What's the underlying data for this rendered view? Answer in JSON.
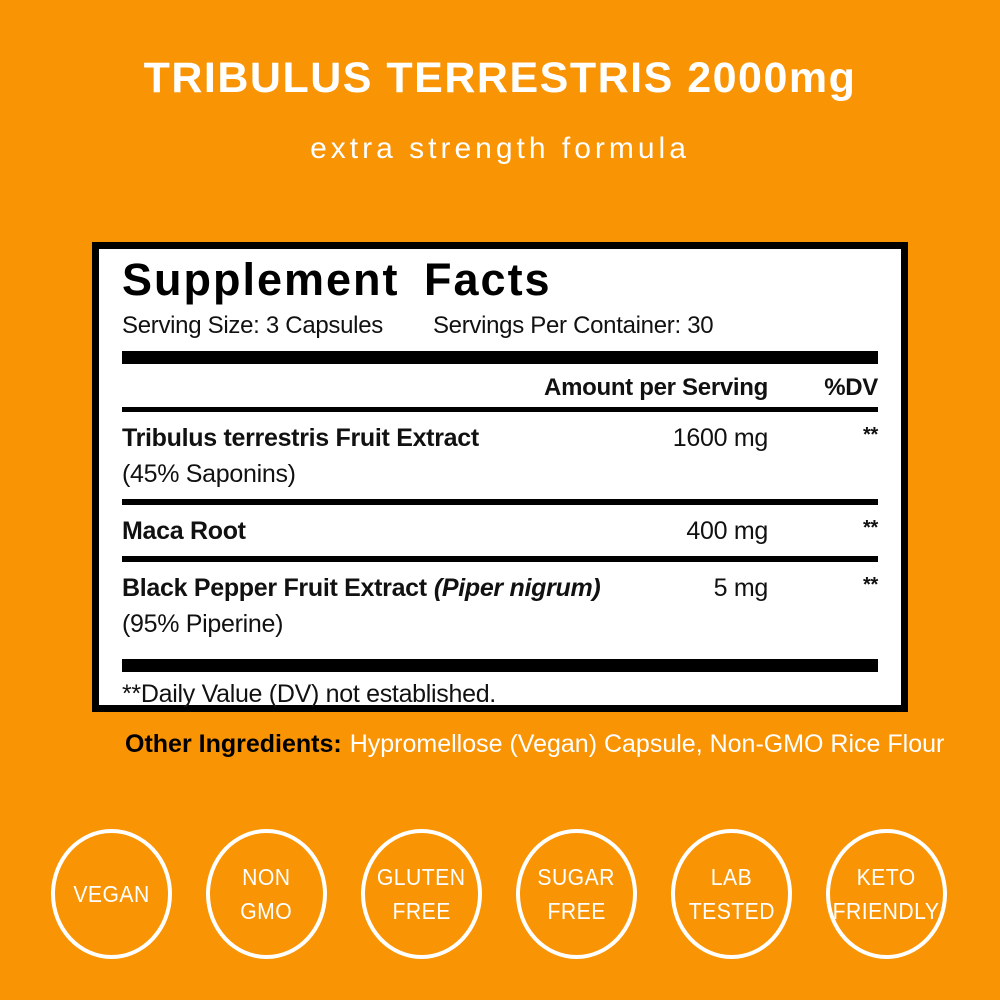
{
  "colors": {
    "background": "#F99404",
    "panel_bg": "#FFFFFF",
    "panel_border": "#000000",
    "header_text": "#FFFFFF",
    "other_ingredients_value_text": "#FFFFFF",
    "other_ingredients_label_text": "#000000"
  },
  "header": {
    "title": "TRIBULUS TERRESTRIS 2000mg",
    "subtitle": "extra strength formula"
  },
  "facts": {
    "heading": "Supplement Facts",
    "serving_size": "Serving Size: 3 Capsules",
    "servings_per_container": "Servings Per Container: 30",
    "columns": {
      "amount": "Amount per Serving",
      "dv": "%DV"
    },
    "rows": [
      {
        "name": "Tribulus terrestris Fruit Extract",
        "name_italic": "",
        "subname": "(45% Saponins)",
        "amount": "1600 mg",
        "dv": "**"
      },
      {
        "name": "Maca Root",
        "name_italic": "",
        "subname": "",
        "amount": "400 mg",
        "dv": "**"
      },
      {
        "name": "Black Pepper Fruit Extract",
        "name_italic": "(Piper nigrum)",
        "subname": "(95% Piperine)",
        "amount": "5 mg",
        "dv": "**"
      }
    ],
    "footnote": "**Daily Value (DV) not established."
  },
  "other_ingredients": {
    "label": "Other Ingredients:",
    "value": "Hypromellose (Vegan) Capsule, Non-GMO Rice Flour"
  },
  "badges": [
    {
      "line1": "VEGAN",
      "line2": ""
    },
    {
      "line1": "NON",
      "line2": "GMO"
    },
    {
      "line1": "GLUTEN",
      "line2": "FREE"
    },
    {
      "line1": "SUGAR",
      "line2": "FREE"
    },
    {
      "line1": "LAB",
      "line2": "TESTED"
    },
    {
      "line1": "KETO",
      "line2": "FRIENDLY"
    }
  ]
}
